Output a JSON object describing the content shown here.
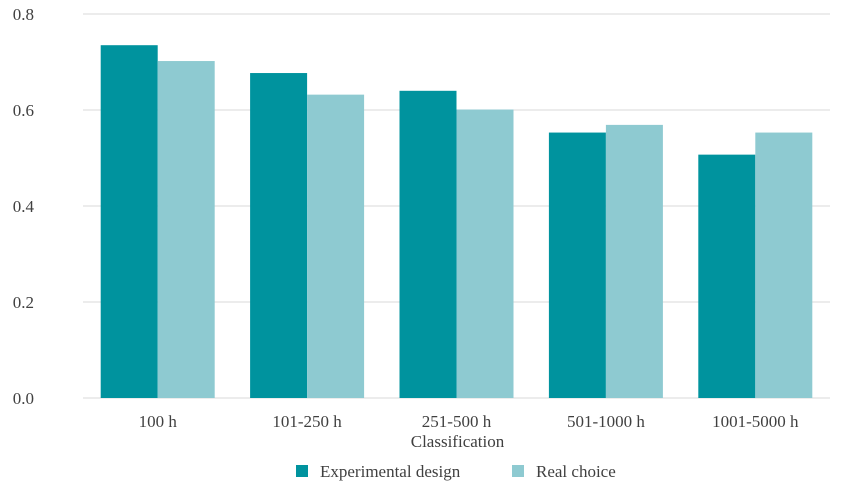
{
  "chart_data": {
    "type": "bar",
    "categories": [
      "100 h",
      "101-250 h",
      "251-500 h",
      "501-1000 h",
      "1001-5000 h"
    ],
    "series": [
      {
        "name": "Experimental design",
        "color": "#00939e",
        "values": [
          0.735,
          0.677,
          0.64,
          0.553,
          0.507
        ]
      },
      {
        "name": "Real choice",
        "color": "#8ecad1",
        "values": [
          0.702,
          0.632,
          0.601,
          0.569,
          0.553
        ]
      }
    ],
    "title": "",
    "xlabel": "Classification",
    "ylabel": "",
    "ylim": [
      0,
      0.8
    ],
    "yticks": [
      "0.0",
      "0.2",
      "0.4",
      "0.6",
      "0.8"
    ],
    "grid": true,
    "legend_position": "bottom"
  }
}
